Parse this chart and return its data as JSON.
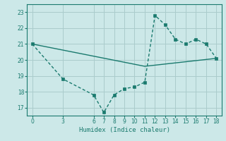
{
  "xlabel": "Humidex (Indice chaleur)",
  "background_color": "#cce8e8",
  "grid_color": "#aacccc",
  "line_color": "#1a7a6e",
  "xlim": [
    -0.5,
    18.5
  ],
  "ylim": [
    16.5,
    23.5
  ],
  "xticks": [
    0,
    3,
    6,
    7,
    8,
    9,
    10,
    11,
    12,
    13,
    14,
    15,
    16,
    17,
    18
  ],
  "yticks": [
    17,
    18,
    19,
    20,
    21,
    22,
    23
  ],
  "line1_x": [
    0,
    3,
    6,
    7,
    8,
    9,
    10,
    11,
    12,
    13,
    14,
    15,
    16,
    17,
    18
  ],
  "line1_y": [
    21.0,
    18.8,
    17.8,
    16.7,
    17.8,
    18.2,
    18.3,
    18.6,
    22.8,
    22.2,
    21.3,
    21.0,
    21.3,
    21.0,
    20.1
  ],
  "line2_x": [
    0,
    11,
    18
  ],
  "line2_y": [
    21.0,
    19.6,
    20.1
  ],
  "marker_size": 2.5,
  "line_width": 1.0,
  "tick_fontsize": 5.5,
  "xlabel_fontsize": 6.5
}
